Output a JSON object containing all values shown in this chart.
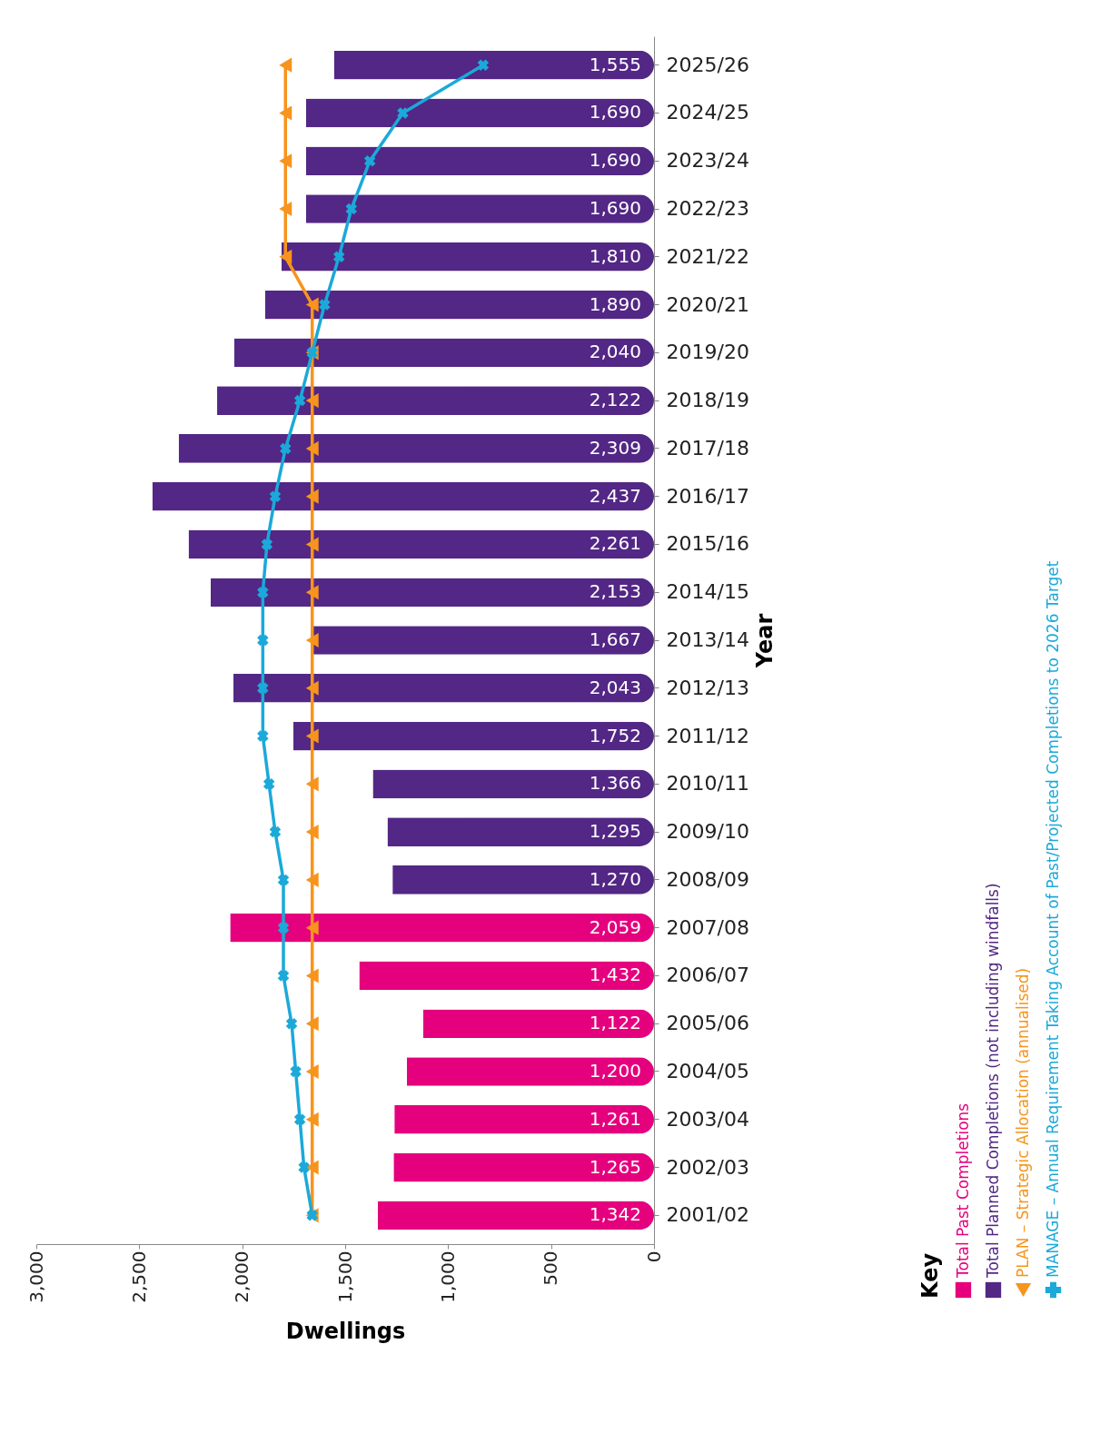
{
  "chart_data": {
    "type": "bar",
    "orientation": "horizontal",
    "xlabel": "Dwellings",
    "ylabel": "Year",
    "legend_title": "Key",
    "legend": "right",
    "grid": false,
    "categories": [
      "2025/26",
      "2024/25",
      "2023/24",
      "2022/23",
      "2021/22",
      "2020/21",
      "2019/20",
      "2018/19",
      "2017/18",
      "2016/17",
      "2015/16",
      "2014/15",
      "2013/14",
      "2012/13",
      "2011/12",
      "2010/11",
      "2009/10",
      "2008/09",
      "2007/08",
      "2006/07",
      "2005/06",
      "2004/05",
      "2003/04",
      "2002/03",
      "2001/02"
    ],
    "xlim": [
      3000,
      0
    ],
    "xticks": [
      {
        "value": 3000,
        "label": "3,000"
      },
      {
        "value": 2500,
        "label": "2,500"
      },
      {
        "value": 2000,
        "label": "2,000"
      },
      {
        "value": 1500,
        "label": "1,500"
      },
      {
        "value": 1000,
        "label": "1,000"
      },
      500,
      0
    ],
    "series": [
      {
        "name": "Total Past Completions",
        "color": "#e5007d",
        "values": [
          null,
          null,
          null,
          null,
          null,
          null,
          null,
          null,
          null,
          null,
          null,
          null,
          null,
          null,
          null,
          null,
          null,
          null,
          2059,
          1432,
          1122,
          1200,
          1261,
          1265,
          1342
        ],
        "value_labels": [
          null,
          null,
          null,
          null,
          null,
          null,
          null,
          null,
          null,
          null,
          null,
          null,
          null,
          null,
          null,
          null,
          null,
          null,
          "2,059",
          "1,432",
          "1,122",
          "1,200",
          "1,261",
          "1,265",
          "1,342"
        ]
      },
      {
        "name": "Total Planned Completions (not including windfalls)",
        "color": "#532785",
        "values": [
          1555,
          1690,
          1690,
          1690,
          1810,
          1890,
          2040,
          2122,
          2309,
          2437,
          2261,
          2153,
          1667,
          2043,
          1752,
          1366,
          1295,
          1270,
          null,
          null,
          null,
          null,
          null,
          null,
          null
        ],
        "value_labels": [
          "1,555",
          "1,690",
          "1,690",
          "1,690",
          "1,810",
          "1,890",
          "2,040",
          "2,122",
          "2,309",
          "2,437",
          "2,261",
          "2,153",
          "1,667",
          "2,043",
          "1,752",
          "1,366",
          "1,295",
          "1,270",
          null,
          null,
          null,
          null,
          null,
          null,
          null
        ]
      },
      {
        "name": "PLAN – Strategic Allocation (annualised)",
        "type": "line",
        "marker": "triangle",
        "color": "#f7941d",
        "values": [
          1790,
          1790,
          1790,
          1790,
          1790,
          1660,
          1660,
          1660,
          1660,
          1660,
          1660,
          1660,
          1660,
          1660,
          1660,
          1660,
          1660,
          1660,
          1660,
          1660,
          1660,
          1660,
          1660,
          1660,
          1660
        ]
      },
      {
        "name": "MANAGE – Annual Requirement Taking Account of Past/Projected Completions to 2026 Target",
        "type": "line",
        "marker": "cross",
        "color": "#1ba9d9",
        "values": [
          830,
          1220,
          1380,
          1470,
          1530,
          1600,
          1660,
          1720,
          1790,
          1840,
          1880,
          1900,
          1900,
          1900,
          1900,
          1870,
          1840,
          1800,
          1800,
          1800,
          1760,
          1740,
          1720,
          1700,
          1660
        ]
      }
    ]
  }
}
